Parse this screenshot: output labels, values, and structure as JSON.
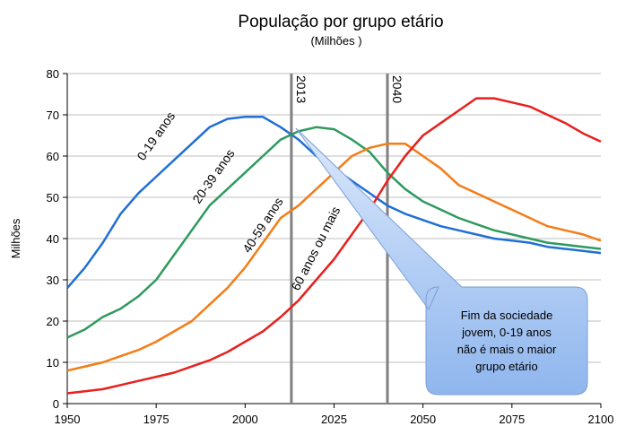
{
  "chart_data": {
    "type": "line",
    "title": "População por grupo etário",
    "subtitle": "(Milhões )",
    "y_label": "Milhões",
    "x": [
      1950,
      1955,
      1960,
      1965,
      1970,
      1975,
      1980,
      1985,
      1990,
      1995,
      2000,
      2005,
      2010,
      2015,
      2020,
      2025,
      2030,
      2035,
      2040,
      2045,
      2050,
      2055,
      2060,
      2065,
      2070,
      2075,
      2080,
      2085,
      2090,
      2095,
      2100
    ],
    "series": [
      {
        "name": "0-19 anos",
        "color": "#1f6fd6",
        "values": [
          28,
          33,
          39,
          46,
          51,
          55,
          59,
          63,
          67,
          69,
          69.5,
          69.5,
          67,
          64,
          60,
          57,
          54,
          51,
          48,
          46,
          44.5,
          43,
          42,
          41,
          40,
          39.5,
          39,
          38,
          37.5,
          37,
          36.5
        ]
      },
      {
        "name": "20-39 anos",
        "color": "#2e9a5e",
        "values": [
          16,
          18,
          21,
          23,
          26,
          30,
          36,
          42,
          48,
          52,
          56,
          60,
          64,
          66,
          67,
          66.5,
          64,
          61,
          56,
          52,
          49,
          47,
          45,
          43.5,
          42,
          41,
          40,
          39,
          38.5,
          38,
          37.5
        ]
      },
      {
        "name": "40-59 anos",
        "color": "#f47c16",
        "values": [
          8,
          9,
          10,
          11.5,
          13,
          15,
          17.5,
          20,
          24,
          28,
          33,
          39,
          45,
          48,
          52,
          56,
          60,
          62,
          63,
          63,
          60,
          57,
          53,
          51,
          49,
          47,
          45,
          43,
          42,
          41,
          39.5
        ]
      },
      {
        "name": "60 anos ou mais",
        "color": "#e8201e",
        "values": [
          2.5,
          3,
          3.5,
          4.5,
          5.5,
          6.5,
          7.5,
          9,
          10.5,
          12.5,
          15,
          17.5,
          21,
          25,
          30,
          35,
          41,
          47,
          54,
          60,
          65,
          68,
          71,
          74,
          74,
          73,
          72,
          70,
          68,
          65.5,
          63.5
        ]
      }
    ],
    "reference_lines": [
      2013,
      2040
    ],
    "annotation": [
      "Fim da sociedade",
      "jovem, 0-19 anos",
      "não é mais  o maior",
      "grupo etário"
    ],
    "xlim": [
      1950,
      2100
    ],
    "xticks": [
      1950,
      1975,
      2000,
      2025,
      2050,
      2075,
      2100
    ],
    "ylim": [
      0,
      80
    ],
    "yticks": [
      0,
      10,
      20,
      30,
      40,
      50,
      60,
      70,
      80
    ],
    "grid": true
  }
}
